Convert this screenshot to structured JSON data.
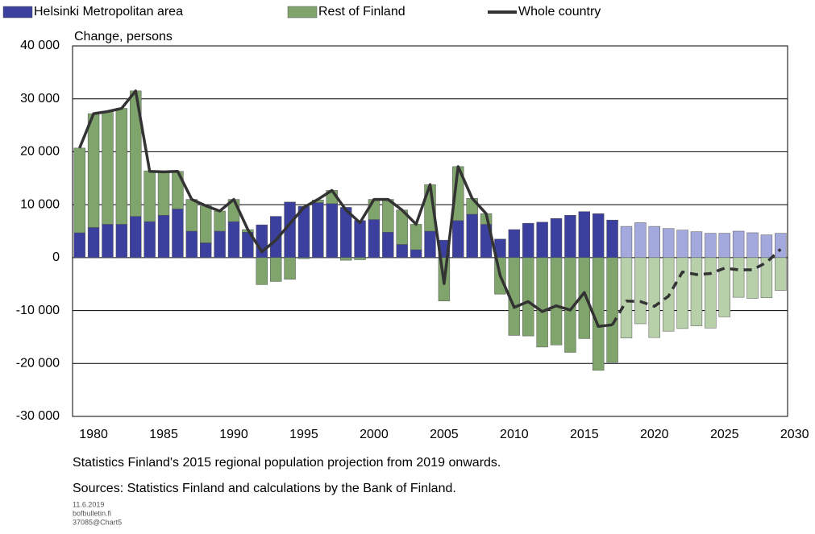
{
  "chart_data": {
    "type": "stacked_bar_line",
    "y_label": "Change, persons",
    "notes": [
      "Statistics Finland's  2015 regional population  projection from 2019 onwards.",
      "Sources: Statistics Finland and calculations by the Bank of Finland."
    ],
    "footer": [
      "11.6.2019",
      "bofbulletin.fi",
      "37085@Chart5"
    ],
    "x": [
      1979,
      1980,
      1981,
      1982,
      1983,
      1984,
      1985,
      1986,
      1987,
      1988,
      1989,
      1990,
      1991,
      1992,
      1993,
      1994,
      1995,
      1996,
      1997,
      1998,
      1999,
      2000,
      2001,
      2002,
      2003,
      2004,
      2005,
      2006,
      2007,
      2008,
      2009,
      2010,
      2011,
      2012,
      2013,
      2014,
      2015,
      2016,
      2017,
      2018,
      2019,
      2020,
      2021,
      2022,
      2023,
      2024,
      2025,
      2026,
      2027,
      2028,
      2029
    ],
    "xlim": [
      1978.5,
      2029.5
    ],
    "xticks": [
      1980,
      1985,
      1990,
      1995,
      2000,
      2005,
      2010,
      2015,
      2020,
      2025,
      2030
    ],
    "ylim": [
      -30000,
      40000
    ],
    "yticks": [
      {
        "value": -30000,
        "label": "-30 000"
      },
      {
        "value": -20000,
        "label": "-20 000"
      },
      {
        "value": -10000,
        "label": "-10 000"
      },
      0,
      {
        "value": 10000,
        "label": "10 000"
      },
      {
        "value": 20000,
        "label": "20 000"
      },
      {
        "value": 30000,
        "label": "30 000"
      },
      {
        "value": 40000,
        "label": "40 000"
      }
    ],
    "grid": true,
    "projection_from": 2018,
    "series": [
      {
        "name": "Helsinki Metropolitan area",
        "kind": "bar",
        "color": "#3b3f9e",
        "projection_color": "#a3a9dd",
        "values": [
          4700,
          5700,
          6300,
          6300,
          7800,
          6800,
          8000,
          9200,
          5000,
          2800,
          5000,
          6800,
          4800,
          6200,
          7800,
          10500,
          9700,
          10400,
          10200,
          9500,
          7000,
          7200,
          4800,
          2500,
          1500,
          5000,
          3300,
          7000,
          8200,
          6300,
          3500,
          5300,
          6500,
          6700,
          7400,
          8000,
          8700,
          8300,
          7100,
          5900,
          6600,
          5900,
          5500,
          5200,
          4900,
          4600,
          4600,
          5000,
          4700,
          4300,
          4600
        ]
      },
      {
        "name": "Rest of Finland",
        "kind": "bar",
        "color": "#7fa46c",
        "projection_color": "#b7d0aa",
        "values": [
          16000,
          21500,
          21300,
          21900,
          23700,
          9600,
          8200,
          7100,
          6000,
          7000,
          3800,
          4200,
          500,
          -5100,
          -4500,
          -4100,
          -200,
          500,
          2500,
          -500,
          -400,
          3800,
          6200,
          6500,
          4800,
          8800,
          -8200,
          10200,
          3000,
          2000,
          -6900,
          -14700,
          -14800,
          -16900,
          -16500,
          -17900,
          -15300,
          -21300,
          -19800,
          -15200,
          -12500,
          -15100,
          -13900,
          -13400,
          -12900,
          -13300,
          -11200,
          -7500,
          -7700,
          -7600,
          -6200
        ]
      },
      {
        "name": "Whole country",
        "kind": "line",
        "color": "#333333",
        "values": [
          20700,
          27200,
          27600,
          28200,
          31500,
          16300,
          16200,
          16300,
          11000,
          9800,
          8800,
          11000,
          5300,
          1100,
          3300,
          6400,
          9500,
          11000,
          12700,
          9000,
          6600,
          11000,
          11000,
          9000,
          6300,
          13800,
          -4900,
          17200,
          11200,
          8300,
          -3400,
          -9400,
          -8300,
          -10200,
          -9100,
          -9900,
          -6600,
          -13000,
          -12700,
          -8200,
          -8300,
          -9200,
          -7300,
          -2700,
          -3200,
          -3000,
          -2000,
          -2300,
          -2300,
          -900,
          1600
        ]
      }
    ]
  }
}
